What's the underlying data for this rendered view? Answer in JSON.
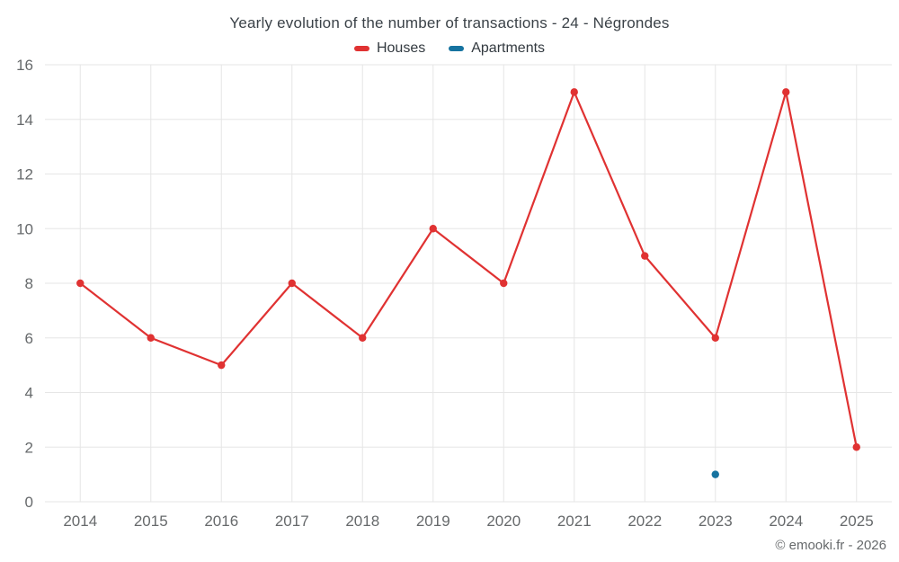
{
  "chart_data": {
    "type": "line",
    "title": "Yearly evolution of the number of transactions - 24 - Négrondes",
    "categories": [
      "2014",
      "2015",
      "2016",
      "2017",
      "2018",
      "2019",
      "2020",
      "2021",
      "2022",
      "2023",
      "2024",
      "2025"
    ],
    "series": [
      {
        "name": "Houses",
        "color": "#e03232",
        "values": [
          8,
          6,
          5,
          8,
          6,
          10,
          8,
          15,
          9,
          6,
          15,
          2
        ]
      },
      {
        "name": "Apartments",
        "color": "#1673a0",
        "values": [
          null,
          null,
          null,
          null,
          null,
          null,
          null,
          null,
          null,
          1,
          null,
          null
        ]
      }
    ],
    "xlabel": "",
    "ylabel": "",
    "ylim": [
      0,
      16
    ],
    "ytick_step": 2,
    "grid": true,
    "legend_position": "top",
    "grid_color": "#e6e6e6",
    "axis_label_color": "#66696b"
  },
  "footer": {
    "credit": "© emooki.fr - 2026"
  }
}
